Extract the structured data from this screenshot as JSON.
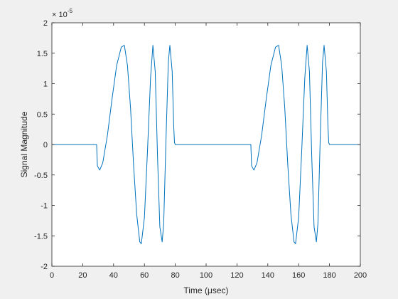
{
  "chart_data": {
    "type": "line",
    "title": "",
    "xlabel": "Time (μsec)",
    "ylabel": "Signal Magnitude",
    "xlim": [
      0,
      200
    ],
    "ylim": [
      -2e-05,
      2e-05
    ],
    "xticks": [
      0,
      20,
      40,
      60,
      80,
      100,
      120,
      140,
      160,
      180,
      200
    ],
    "xtick_labels": [
      "0",
      "20",
      "40",
      "60",
      "80",
      "100",
      "120",
      "140",
      "160",
      "180",
      "200"
    ],
    "yticks": [
      -2e-05,
      -1.5e-05,
      -1e-05,
      -5e-06,
      0,
      5e-06,
      1e-05,
      1.5e-05,
      2e-05
    ],
    "ytick_labels": [
      "-2",
      "-1.5",
      "-1",
      "-0.5",
      "0",
      "0.5",
      "1",
      "1.5",
      "2"
    ],
    "y_exponent_label": "× 10",
    "y_exponent": "-5",
    "grid": false,
    "series": [
      {
        "color": "#0072bd",
        "x": [
          0,
          29,
          29.5,
          31,
          33,
          36,
          39,
          42,
          45,
          47,
          49,
          51,
          53,
          55,
          57,
          58,
          60,
          62,
          64,
          65.5,
          67,
          68.5,
          70,
          71.5,
          72.5,
          74,
          75.5,
          76.5,
          78,
          79,
          79.5,
          80,
          100,
          129,
          129.5,
          131,
          133,
          136,
          139,
          142,
          145,
          147,
          149,
          151,
          153,
          155,
          157,
          158,
          160,
          162,
          164,
          165.5,
          167,
          168.5,
          170,
          171.5,
          172.5,
          174,
          175.5,
          176.5,
          178,
          179,
          179.5,
          180,
          200
        ],
        "y": [
          0,
          0,
          -3.5e-06,
          -4.2e-06,
          -3e-06,
          1.5e-06,
          7.5e-06,
          1.3e-05,
          1.6e-05,
          1.63e-05,
          1.3e-05,
          6e-06,
          -3.5e-06,
          -1.15e-05,
          -1.6e-05,
          -1.63e-05,
          -1.2e-05,
          -1e-06,
          1.1e-05,
          1.63e-05,
          1.2e-05,
          -2e-06,
          -1.35e-05,
          -1.6e-05,
          -1.3e-05,
          1e-06,
          1.35e-05,
          1.63e-05,
          1.2e-05,
          3e-06,
          3e-07,
          0,
          0,
          0,
          -3.5e-06,
          -4.2e-06,
          -3e-06,
          1.5e-06,
          7.5e-06,
          1.3e-05,
          1.6e-05,
          1.63e-05,
          1.3e-05,
          6e-06,
          -3.5e-06,
          -1.15e-05,
          -1.6e-05,
          -1.63e-05,
          -1.2e-05,
          -1e-06,
          1.1e-05,
          1.63e-05,
          1.2e-05,
          -2e-06,
          -1.35e-05,
          -1.6e-05,
          -1.3e-05,
          1e-06,
          1.35e-05,
          1.63e-05,
          1.2e-05,
          3e-06,
          3e-07,
          0,
          0
        ]
      }
    ]
  }
}
